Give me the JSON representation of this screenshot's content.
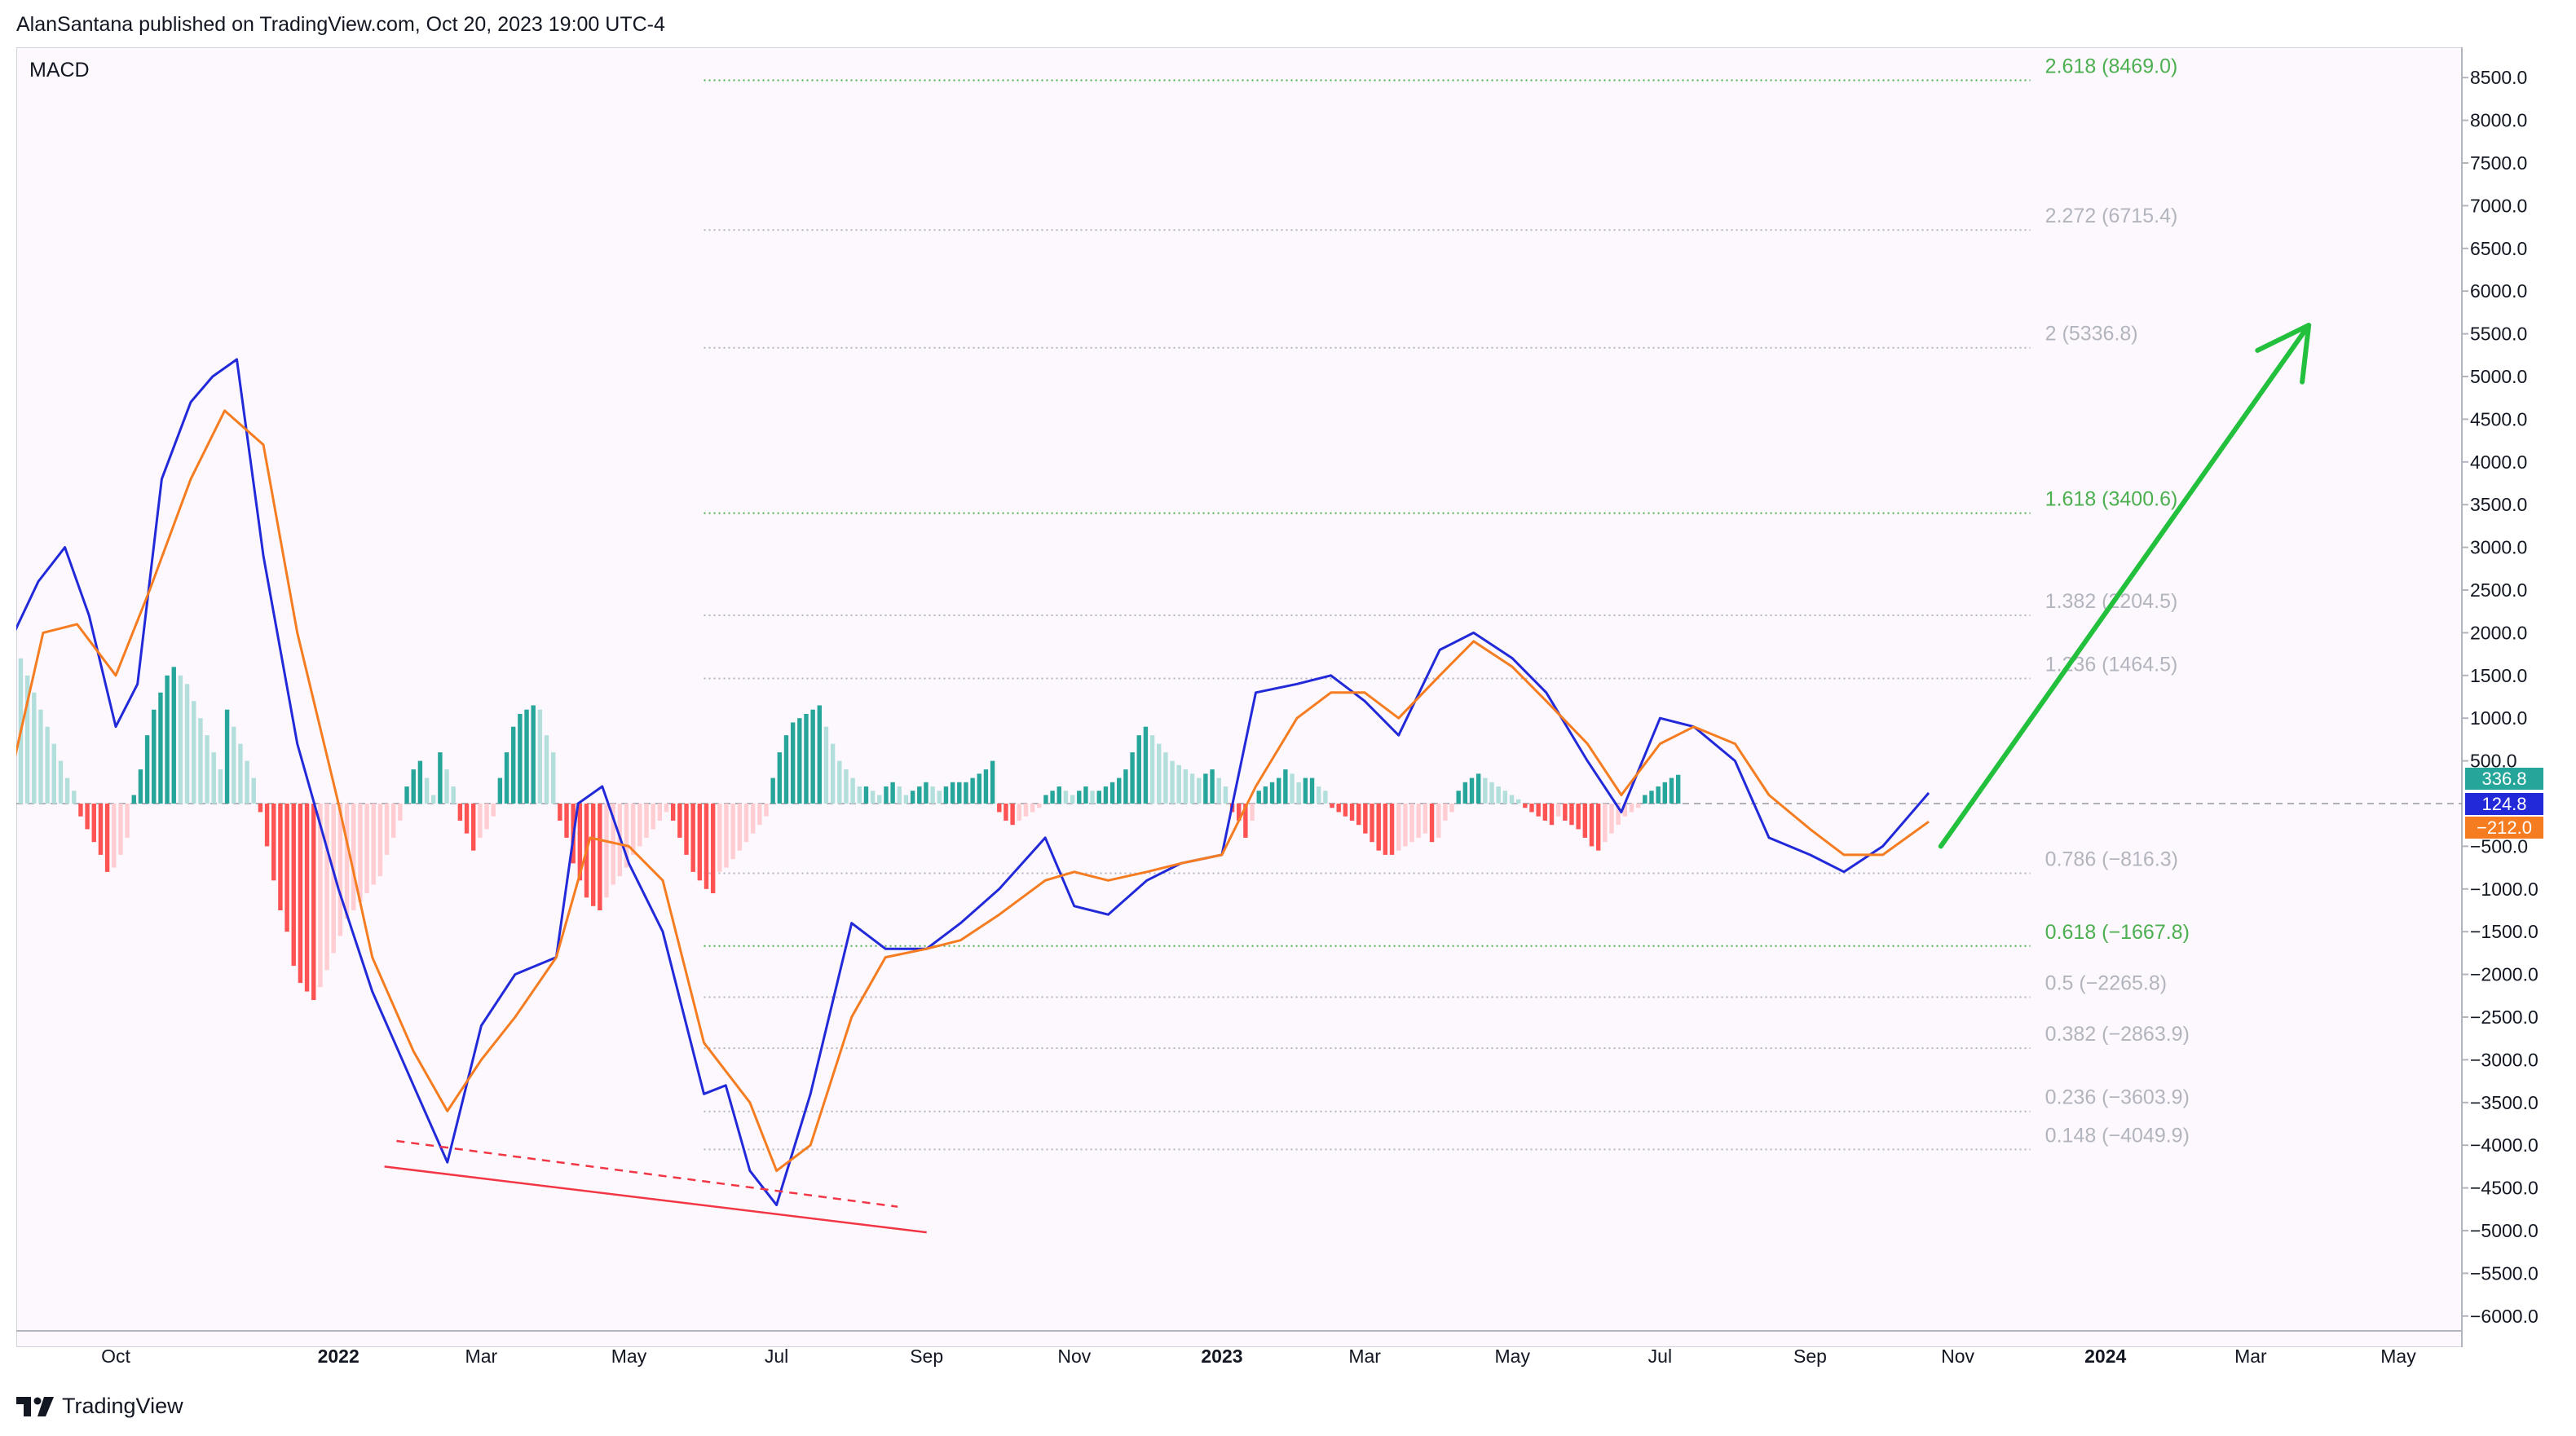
{
  "header": {
    "published_text": "AlanSantana published on TradingView.com, Oct 20, 2023 19:00 UTC-4"
  },
  "indicator": {
    "label": "MACD"
  },
  "footer": {
    "brand": "TradingView",
    "logo_icon": "tradingview-logo-icon"
  },
  "colors": {
    "macd_line": "#2129d9",
    "signal_line": "#f57c20",
    "hist_pos_strong": "#26a69a",
    "hist_pos_weak": "#b2dfdb",
    "hist_neg_strong": "#ff5252",
    "hist_neg_weak": "#ffcdd2",
    "fib_green": "#4caf50",
    "fib_grey": "#b2b5be",
    "arrow": "#22c03c",
    "divergence": "#f23645"
  },
  "chart_data": {
    "type": "line",
    "title": "MACD",
    "xlabel": "",
    "ylabel": "",
    "ylim": [
      -6250,
      8800
    ],
    "x_ticks": [
      {
        "label": "Oct",
        "date": "2021-10-01"
      },
      {
        "label": "2022",
        "date": "2022-01-01",
        "bold": true
      },
      {
        "label": "Mar",
        "date": "2022-03-01"
      },
      {
        "label": "May",
        "date": "2022-05-01"
      },
      {
        "label": "Jul",
        "date": "2022-07-01"
      },
      {
        "label": "Sep",
        "date": "2022-09-01"
      },
      {
        "label": "Nov",
        "date": "2022-11-01"
      },
      {
        "label": "2023",
        "date": "2023-01-01",
        "bold": true
      },
      {
        "label": "Mar",
        "date": "2023-03-01"
      },
      {
        "label": "May",
        "date": "2023-05-01"
      },
      {
        "label": "Jul",
        "date": "2023-07-01"
      },
      {
        "label": "Sep",
        "date": "2023-09-01"
      },
      {
        "label": "Nov",
        "date": "2023-11-01"
      },
      {
        "label": "2024",
        "date": "2024-01-01",
        "bold": true
      },
      {
        "label": "Mar",
        "date": "2024-03-01"
      },
      {
        "label": "May",
        "date": "2024-05-01"
      }
    ],
    "y_ticks": [
      8500,
      8000,
      7500,
      7000,
      6500,
      6000,
      5500,
      5000,
      4500,
      4000,
      3500,
      3000,
      2500,
      2000,
      1500,
      1000,
      500,
      -500,
      -1000,
      -1500,
      -2000,
      -2500,
      -3000,
      -3500,
      -4000,
      -4500,
      -5000,
      -5500,
      -6000
    ],
    "y_tick_labels": [
      "8500.0",
      "8000.0",
      "7500.0",
      "7000.0",
      "6500.0",
      "6000.0",
      "5500.0",
      "5000.0",
      "4500.0",
      "4000.0",
      "3500.0",
      "3000.0",
      "2500.0",
      "2000.0",
      "1500.0",
      "1000.0",
      "500.0",
      "−500.0",
      "−1000.0",
      "−1500.0",
      "−2000.0",
      "−2500.0",
      "−3000.0",
      "−3500.0",
      "−4000.0",
      "−4500.0",
      "−5000.0",
      "−5500.0",
      "−6000.0"
    ],
    "price_badges": [
      {
        "label": "336.8",
        "value": 336.8,
        "color": "#26a69a"
      },
      {
        "label": "124.8",
        "value": 124.8,
        "color": "#2129d9"
      },
      {
        "label": "−212.0",
        "value": -212.0,
        "color": "#f57c20"
      }
    ],
    "fib_levels": [
      {
        "label": "2.618 (8469.0)",
        "value": 8469.0,
        "color": "#4caf50"
      },
      {
        "label": "2.272 (6715.4)",
        "value": 6715.4,
        "color": "#b2b5be"
      },
      {
        "label": "2 (5336.8)",
        "value": 5336.8,
        "color": "#b2b5be"
      },
      {
        "label": "1.618 (3400.6)",
        "value": 3400.6,
        "color": "#4caf50"
      },
      {
        "label": "1.382 (2204.5)",
        "value": 2204.5,
        "color": "#b2b5be"
      },
      {
        "label": "1.236 (1464.5)",
        "value": 1464.5,
        "color": "#b2b5be"
      },
      {
        "label": "0.786 (−816.3)",
        "value": -816.3,
        "color": "#b2b5be"
      },
      {
        "label": "0.618 (−1667.8)",
        "value": -1667.8,
        "color": "#4caf50"
      },
      {
        "label": "0.5 (−2265.8)",
        "value": -2265.8,
        "color": "#b2b5be"
      },
      {
        "label": "0.382 (−2863.9)",
        "value": -2863.9,
        "color": "#b2b5be"
      },
      {
        "label": "0.236 (−3603.9)",
        "value": -3603.9,
        "color": "#b2b5be"
      },
      {
        "label": "0.148 (−4049.9)",
        "value": -4049.9,
        "color": "#b2b5be"
      }
    ],
    "fib_range": {
      "start": "2022-06-01",
      "end": "2023-12-01"
    },
    "series": [
      {
        "name": "MACD",
        "x": [
          "2021-08-20",
          "2021-08-30",
          "2021-09-10",
          "2021-09-20",
          "2021-10-01",
          "2021-10-10",
          "2021-10-20",
          "2021-11-01",
          "2021-11-10",
          "2021-11-20",
          "2021-12-01",
          "2021-12-15",
          "2022-01-01",
          "2022-01-15",
          "2022-02-01",
          "2022-02-15",
          "2022-03-01",
          "2022-03-15",
          "2022-04-01",
          "2022-04-10",
          "2022-04-20",
          "2022-05-01",
          "2022-05-15",
          "2022-06-01",
          "2022-06-10",
          "2022-06-20",
          "2022-07-01",
          "2022-07-15",
          "2022-08-01",
          "2022-08-15",
          "2022-09-01",
          "2022-09-15",
          "2022-10-01",
          "2022-10-20",
          "2022-11-01",
          "2022-11-15",
          "2022-12-01",
          "2022-12-15",
          "2023-01-01",
          "2023-01-15",
          "2023-02-01",
          "2023-02-15",
          "2023-03-01",
          "2023-03-15",
          "2023-04-01",
          "2023-04-15",
          "2023-05-01",
          "2023-05-15",
          "2023-06-01",
          "2023-06-15",
          "2023-07-01",
          "2023-07-15",
          "2023-08-01",
          "2023-08-15",
          "2023-09-01",
          "2023-09-15",
          "2023-10-01",
          "2023-10-20"
        ],
        "values": [
          2000,
          2600,
          3000,
          2200,
          900,
          1400,
          3800,
          4700,
          5000,
          5200,
          2900,
          700,
          -1000,
          -2200,
          -3300,
          -4200,
          -2600,
          -2000,
          -1800,
          0,
          200,
          -700,
          -1500,
          -3400,
          -3300,
          -4300,
          -4700,
          -3400,
          -1400,
          -1700,
          -1700,
          -1400,
          -1000,
          -400,
          -1200,
          -1300,
          -900,
          -700,
          -600,
          1300,
          1400,
          1500,
          1200,
          800,
          1800,
          2000,
          1700,
          1300,
          500,
          -100,
          1000,
          900,
          500,
          -400,
          -600,
          -800,
          -500,
          124.8
        ]
      },
      {
        "name": "Signal",
        "x": [
          "2021-08-20",
          "2021-09-01",
          "2021-09-15",
          "2021-10-01",
          "2021-10-15",
          "2021-11-01",
          "2021-11-15",
          "2021-12-01",
          "2021-12-15",
          "2022-01-01",
          "2022-01-15",
          "2022-02-01",
          "2022-02-15",
          "2022-03-01",
          "2022-03-15",
          "2022-04-01",
          "2022-04-15",
          "2022-05-01",
          "2022-05-15",
          "2022-06-01",
          "2022-06-20",
          "2022-07-01",
          "2022-07-15",
          "2022-08-01",
          "2022-08-15",
          "2022-09-01",
          "2022-09-15",
          "2022-10-01",
          "2022-10-20",
          "2022-11-01",
          "2022-11-15",
          "2022-12-01",
          "2022-12-15",
          "2023-01-01",
          "2023-01-15",
          "2023-02-01",
          "2023-02-15",
          "2023-03-01",
          "2023-03-15",
          "2023-04-01",
          "2023-04-15",
          "2023-05-01",
          "2023-05-15",
          "2023-06-01",
          "2023-06-15",
          "2023-07-01",
          "2023-07-15",
          "2023-08-01",
          "2023-08-15",
          "2023-09-01",
          "2023-09-15",
          "2023-10-01",
          "2023-10-20"
        ],
        "values": [
          500,
          2000,
          2100,
          1500,
          2500,
          3800,
          4600,
          4200,
          2000,
          0,
          -1800,
          -2900,
          -3600,
          -3000,
          -2500,
          -1800,
          -400,
          -500,
          -900,
          -2800,
          -3500,
          -4300,
          -4000,
          -2500,
          -1800,
          -1700,
          -1600,
          -1300,
          -900,
          -800,
          -900,
          -800,
          -700,
          -600,
          200,
          1000,
          1300,
          1300,
          1000,
          1500,
          1900,
          1600,
          1200,
          700,
          100,
          700,
          900,
          700,
          100,
          -300,
          -600,
          -600,
          -212
        ]
      }
    ],
    "histogram": {
      "name": "Histogram",
      "start": "2021-08-20",
      "step_days": 2.75,
      "values": [
        1750,
        1700,
        1500,
        1300,
        1100,
        900,
        700,
        500,
        300,
        150,
        -150,
        -300,
        -450,
        -600,
        -800,
        -750,
        -600,
        -400,
        100,
        400,
        800,
        1100,
        1300,
        1500,
        1600,
        1500,
        1400,
        1200,
        1000,
        800,
        600,
        400,
        1100,
        900,
        700,
        500,
        300,
        -100,
        -500,
        -900,
        -1250,
        -1500,
        -1900,
        -2100,
        -2200,
        -2300,
        -2150,
        -1950,
        -1750,
        -1550,
        -1350,
        -1250,
        -1150,
        -1050,
        -950,
        -850,
        -600,
        -400,
        -200,
        200,
        400,
        500,
        300,
        100,
        600,
        400,
        200,
        -200,
        -350,
        -550,
        -400,
        -300,
        -150,
        300,
        600,
        900,
        1050,
        1100,
        1150,
        1100,
        800,
        600,
        -200,
        -400,
        -700,
        -900,
        -1100,
        -1200,
        -1250,
        -1100,
        -950,
        -850,
        -750,
        -600,
        -500,
        -400,
        -300,
        -200,
        -100,
        -200,
        -400,
        -600,
        -800,
        -900,
        -1000,
        -1050,
        -800,
        -750,
        -650,
        -550,
        -450,
        -350,
        -250,
        -150,
        300,
        600,
        800,
        950,
        1000,
        1050,
        1100,
        1150,
        900,
        700,
        500,
        400,
        300,
        200,
        200,
        150,
        100,
        200,
        250,
        200,
        100,
        150,
        200,
        250,
        200,
        150,
        200,
        250,
        250,
        250,
        300,
        350,
        400,
        500,
        -100,
        -200,
        -250,
        -200,
        -150,
        -100,
        -50,
        100,
        150,
        200,
        150,
        100,
        150,
        200,
        150,
        150,
        200,
        250,
        300,
        400,
        600,
        800,
        900,
        800,
        700,
        600,
        500,
        450,
        400,
        350,
        300,
        350,
        400,
        300,
        200,
        -100,
        -200,
        -400,
        -200,
        150,
        200,
        250,
        300,
        400,
        350,
        250,
        300,
        300,
        200,
        150,
        -50,
        -100,
        -150,
        -200,
        -250,
        -350,
        -450,
        -550,
        -600,
        -600,
        -550,
        -500,
        -450,
        -400,
        -350,
        -450,
        -400,
        -200,
        -100,
        150,
        250,
        300,
        350,
        300,
        250,
        200,
        150,
        100,
        50,
        -50,
        -100,
        -150,
        -200,
        -250,
        -150,
        -200,
        -250,
        -300,
        -400,
        -500,
        -550,
        -450,
        -350,
        -250,
        -150,
        -100,
        -50,
        100,
        150,
        200,
        250,
        300,
        336.8
      ]
    },
    "divergence_lines": [
      {
        "style": "solid",
        "points": [
          [
            "2022-01-20",
            -4250
          ],
          [
            "2022-09-01",
            -5020
          ]
        ]
      },
      {
        "style": "dashed",
        "points": [
          [
            "2022-01-25",
            -3950
          ],
          [
            "2022-08-20",
            -4720
          ]
        ]
      }
    ],
    "arrow": {
      "from": [
        "2023-10-25",
        -500
      ],
      "to": [
        "2024-03-25",
        5600
      ]
    }
  }
}
